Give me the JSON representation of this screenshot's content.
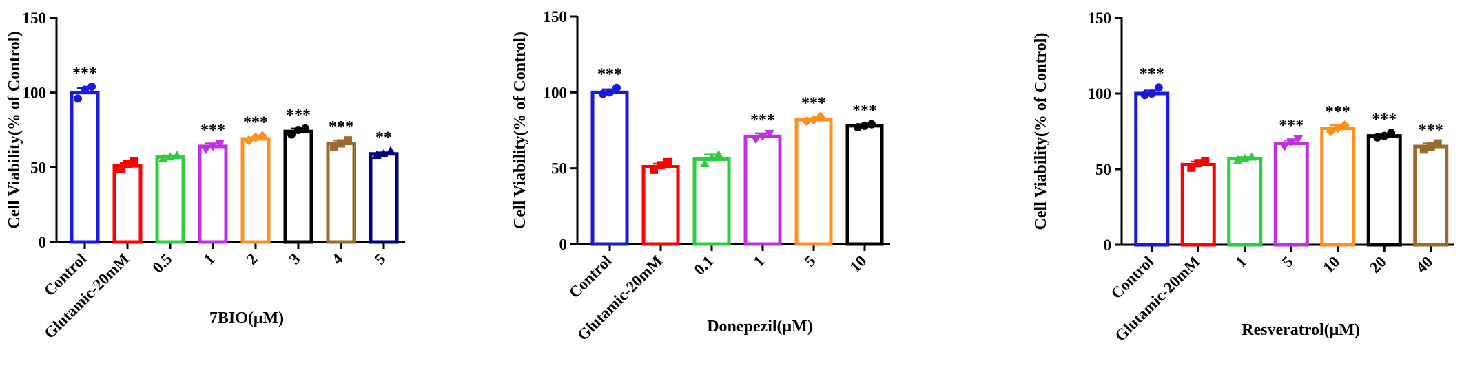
{
  "chart_data": [
    {
      "type": "bar",
      "ylabel": "Cell Viability(% of Control)",
      "xlabel": "7BIO(μM)",
      "ylim": [
        0,
        150
      ],
      "yticks": [
        0,
        50,
        100,
        150
      ],
      "categories": [
        "Control",
        "Glutamic-20mM",
        "0.5",
        "1",
        "2",
        "3",
        "4",
        "5"
      ],
      "values": [
        100,
        51,
        57,
        64,
        69,
        74,
        66,
        59
      ],
      "errors": [
        3,
        2,
        1,
        2,
        1,
        2,
        2,
        1
      ],
      "points": [
        [
          96,
          102,
          104
        ],
        [
          49,
          52,
          54
        ],
        [
          56,
          57,
          58
        ],
        [
          62,
          64,
          66
        ],
        [
          68,
          70,
          71
        ],
        [
          72,
          75,
          76
        ],
        [
          64,
          66,
          68
        ],
        [
          58,
          59,
          61
        ]
      ],
      "significance": [
        "***",
        "",
        "",
        "***",
        "***",
        "***",
        "***",
        "**"
      ],
      "colors": [
        "#1a1adc",
        "#ff0000",
        "#2ecc40",
        "#c030e0",
        "#ff9020",
        "#000000",
        "#9b6a2f",
        "#000080"
      ],
      "markers": [
        "circle",
        "square",
        "triangle",
        "triangle-down",
        "diamond",
        "circle",
        "square",
        "triangle"
      ]
    },
    {
      "type": "bar",
      "ylabel": "Cell Viability(% of Control)",
      "xlabel": "Donepezil(μM)",
      "ylim": [
        0,
        150
      ],
      "yticks": [
        0,
        50,
        100,
        150
      ],
      "categories": [
        "Control",
        "Glutamic-20mM",
        "0.1",
        "1",
        "5",
        "10"
      ],
      "values": [
        100,
        51,
        56,
        71,
        82,
        78
      ],
      "errors": [
        2,
        2,
        3,
        2,
        1,
        1
      ],
      "points": [
        [
          99,
          100,
          103
        ],
        [
          49,
          52,
          54
        ],
        [
          53,
          57,
          59
        ],
        [
          69,
          71,
          73
        ],
        [
          81,
          82,
          84
        ],
        [
          77,
          78,
          79
        ]
      ],
      "significance": [
        "***",
        "",
        "",
        "***",
        "***",
        "***"
      ],
      "colors": [
        "#1a1adc",
        "#ff0000",
        "#2ecc40",
        "#c030e0",
        "#ff9020",
        "#000000"
      ],
      "markers": [
        "circle",
        "square",
        "triangle",
        "triangle-down",
        "diamond",
        "circle"
      ]
    },
    {
      "type": "bar",
      "ylabel": "Cell Viability(% of Control)",
      "xlabel": "Resveratrol(μM)",
      "ylim": [
        0,
        150
      ],
      "yticks": [
        0,
        50,
        100,
        150
      ],
      "categories": [
        "Control",
        "Glutamic-20mM",
        "1",
        "5",
        "10",
        "20",
        "40"
      ],
      "values": [
        100,
        53,
        57,
        67,
        77,
        72,
        65
      ],
      "errors": [
        2,
        2,
        1,
        2,
        2,
        1,
        2
      ],
      "points": [
        [
          99,
          100,
          104
        ],
        [
          51,
          54,
          55
        ],
        [
          56,
          57,
          58
        ],
        [
          65,
          68,
          70
        ],
        [
          75,
          77,
          79
        ],
        [
          71,
          72,
          74
        ],
        [
          63,
          65,
          67
        ]
      ],
      "significance": [
        "***",
        "",
        "",
        "***",
        "***",
        "***",
        "***"
      ],
      "colors": [
        "#1a1adc",
        "#ff0000",
        "#2ecc40",
        "#c030e0",
        "#ff9020",
        "#000000",
        "#9b6a2f"
      ],
      "markers": [
        "circle",
        "square",
        "triangle",
        "triangle-down",
        "diamond",
        "circle",
        "square"
      ]
    }
  ]
}
